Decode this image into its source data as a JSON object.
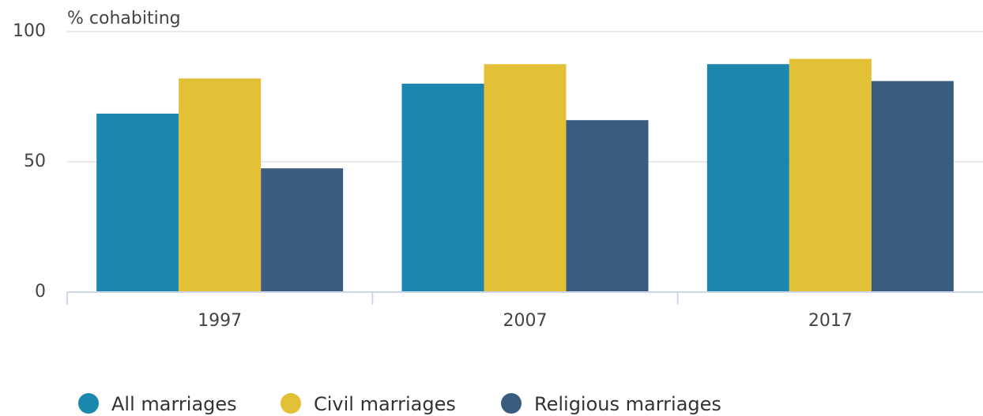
{
  "chart_data": {
    "type": "bar",
    "y_label": "% cohabiting",
    "categories": [
      "1997",
      "2007",
      "2017"
    ],
    "series": [
      {
        "name": "All marriages",
        "color": "#1b86ae",
        "values": [
          68.5,
          80,
          87.5
        ]
      },
      {
        "name": "Civil marriages",
        "color": "#e3c136",
        "values": [
          82,
          87.5,
          89.5
        ]
      },
      {
        "name": "Religious marriages",
        "color": "#3a5d7e",
        "values": [
          47.5,
          66,
          81
        ]
      }
    ],
    "ylim": [
      0,
      100
    ],
    "yticks": [
      0,
      50,
      100
    ],
    "grid": true,
    "legend": "bottom"
  }
}
